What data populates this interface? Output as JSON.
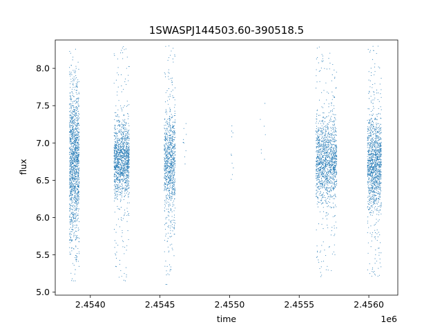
{
  "chart_data": {
    "type": "scatter",
    "title": "1SWASPJ144503.60-390518.5",
    "xlabel": "time",
    "ylabel": "flux",
    "x_offset_label": "1e6",
    "x_unit_scale": 1000000,
    "xlim": [
      2453748,
      2456208
    ],
    "ylim": [
      4.96,
      8.38
    ],
    "xticks": [
      2.454,
      2.4545,
      2.455,
      2.4555,
      2.456
    ],
    "xtick_labels": [
      "2.4540",
      "2.4545",
      "2.4550",
      "2.4555",
      "2.4560"
    ],
    "yticks": [
      5.0,
      5.5,
      6.0,
      6.5,
      7.0,
      7.5,
      8.0
    ],
    "ytick_labels": [
      "5.0",
      "5.5",
      "6.0",
      "6.5",
      "7.0",
      "7.5",
      "8.0"
    ],
    "grid": false,
    "marker_color": "#1f77b4",
    "clusters": [
      {
        "x_range": [
          2453850,
          2453920
        ],
        "y_center": 6.75,
        "y_spread": 0.5,
        "y_range": [
          5.15,
          8.32
        ],
        "n_points": 1400
      },
      {
        "x_range": [
          2454170,
          2454280
        ],
        "y_center": 6.78,
        "y_spread": 0.25,
        "y_range": [
          5.1,
          8.3
        ],
        "n_points": 1300
      },
      {
        "x_range": [
          2454530,
          2454610
        ],
        "y_center": 6.72,
        "y_spread": 0.35,
        "y_range": [
          5.1,
          8.3
        ],
        "n_points": 900
      },
      {
        "x_range": [
          2454650,
          2454690
        ],
        "y_center": 6.9,
        "y_spread": 0.3,
        "y_range": [
          6.7,
          8.1
        ],
        "n_points": 12
      },
      {
        "x_range": [
          2455010,
          2455030
        ],
        "y_center": 6.8,
        "y_spread": 0.4,
        "y_range": [
          6.05,
          7.42
        ],
        "n_points": 10
      },
      {
        "x_range": [
          2455220,
          2455260
        ],
        "y_center": 7.1,
        "y_spread": 0.3,
        "y_range": [
          6.7,
          7.58
        ],
        "n_points": 10
      },
      {
        "x_range": [
          2455620,
          2455770
        ],
        "y_center": 6.76,
        "y_spread": 0.28,
        "y_range": [
          5.2,
          8.3
        ],
        "n_points": 1400
      },
      {
        "x_range": [
          2455990,
          2456090
        ],
        "y_center": 6.72,
        "y_spread": 0.32,
        "y_range": [
          5.2,
          8.3
        ],
        "n_points": 1300
      }
    ]
  }
}
